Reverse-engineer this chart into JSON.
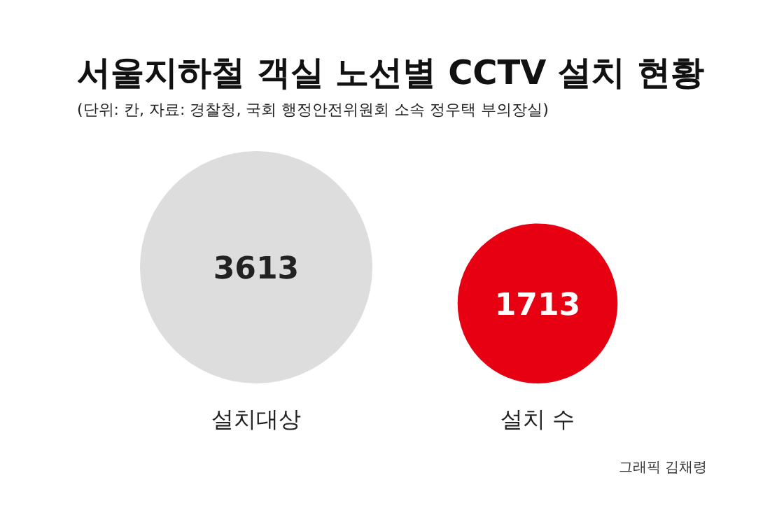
{
  "chart_data": {
    "type": "other",
    "title": "서울지하철 객실 노선별 CCTV 설치 현황",
    "subtitle": "(단위: 칸, 자료: 경찰청, 국회 행정안전위원회 소속 정우택 부의장실)",
    "categories": [
      "설치대상",
      "설치 수"
    ],
    "values": [
      3613,
      1713
    ],
    "colors": [
      "#dddddd",
      "#e60012"
    ],
    "data_labels": true,
    "annotations": [
      "그래픽 김채령"
    ]
  }
}
